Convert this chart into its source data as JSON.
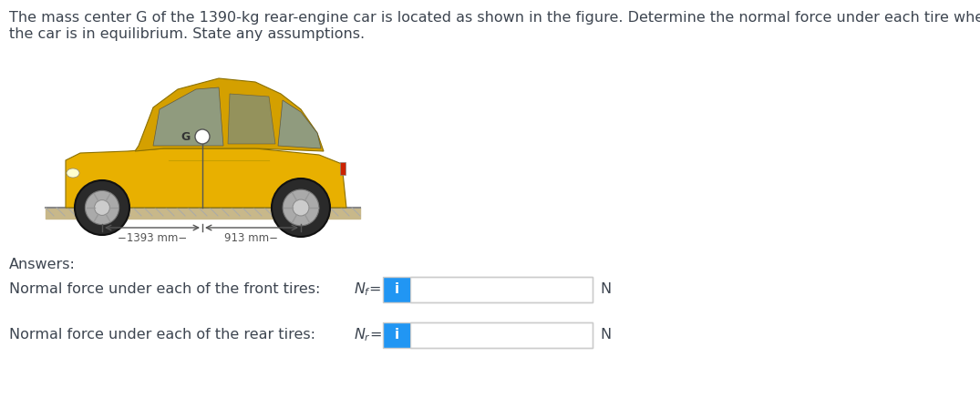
{
  "title_line1": "The mass center G of the 1390-kg rear-engine car is located as shown in the figure. Determine the normal force under each tire when",
  "title_line2": "the car is in equilibrium. State any assumptions.",
  "answers_label": "Answers:",
  "row1_label": "Normal force under each of the front tires:",
  "row1_var": "N_f =",
  "row1_unit": "N",
  "row2_label": "Normal force under each of the rear tires:",
  "row2_var": "N_r =",
  "row2_unit": "N",
  "dim_label1": "−1393 mm−",
  "dim_label2": "913 mm−",
  "blue_color": "#2196F3",
  "text_color": "#3d4550",
  "bg_color": "#ffffff",
  "box_border_color": "#cccccc",
  "title_fontsize": 11.5,
  "label_fontsize": 11.5,
  "answers_fontsize": 11.5,
  "figure_width": 10.75,
  "figure_height": 4.48,
  "dpi": 100
}
